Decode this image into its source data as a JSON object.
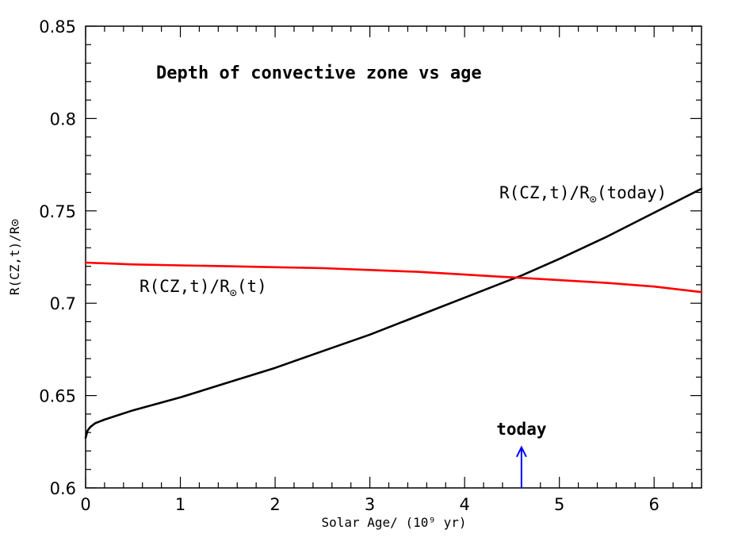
{
  "chart_data": {
    "type": "line",
    "title": "Depth of convective zone vs age",
    "xlabel": "Solar Age/ (10⁹ yr)",
    "ylabel": "R(CZ,t)/R⊙",
    "xlim": [
      0,
      6.5
    ],
    "ylim": [
      0.6,
      0.85
    ],
    "x_ticks": [
      0,
      1,
      2,
      3,
      4,
      5,
      6
    ],
    "y_ticks": [
      0.6,
      0.65,
      0.7,
      0.75,
      0.8,
      0.85
    ],
    "x_tick_labels": [
      "0",
      "1",
      "2",
      "3",
      "4",
      "5",
      "6"
    ],
    "y_tick_labels": [
      "0.6",
      "0.65",
      "0.7",
      "0.75",
      "0.8",
      "0.85"
    ],
    "grid": false,
    "series": [
      {
        "name": "R(CZ,t)/R⊙(today)",
        "color": "#000000",
        "x": [
          0,
          0.02,
          0.05,
          0.1,
          0.2,
          0.5,
          1.0,
          1.5,
          2.0,
          2.5,
          3.0,
          3.5,
          4.0,
          4.5,
          4.6,
          5.0,
          5.5,
          6.0,
          6.5
        ],
        "y": [
          0.627,
          0.631,
          0.633,
          0.635,
          0.637,
          0.642,
          0.649,
          0.657,
          0.665,
          0.674,
          0.683,
          0.693,
          0.703,
          0.713,
          0.715,
          0.724,
          0.736,
          0.749,
          0.762
        ]
      },
      {
        "name": "R(CZ,t)/R⊙(t)",
        "color": "#ff0000",
        "x": [
          0,
          0.5,
          1.0,
          1.5,
          2.0,
          2.5,
          3.0,
          3.5,
          4.0,
          4.5,
          5.0,
          5.5,
          6.0,
          6.5
        ],
        "y": [
          0.722,
          0.721,
          0.7205,
          0.72,
          0.7195,
          0.719,
          0.718,
          0.717,
          0.7155,
          0.714,
          0.7125,
          0.711,
          0.709,
          0.706
        ]
      }
    ],
    "annotations": [
      {
        "text": "today",
        "color": "#0000ff",
        "x": 4.6,
        "arrow_from_y": 0.6,
        "arrow_to_y": 0.622
      }
    ]
  }
}
